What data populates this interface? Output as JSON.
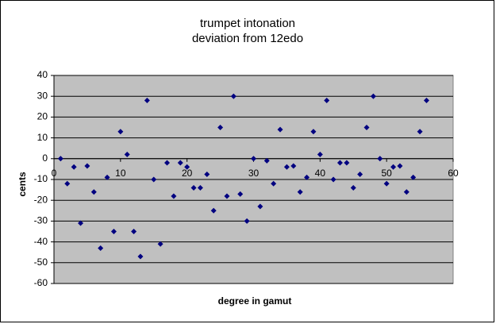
{
  "chart_data": {
    "type": "scatter",
    "title": "trumpet intonation",
    "subtitle": "deviation from 12edo",
    "x_label": "degree in gamut",
    "y_label": "cents",
    "color": "#000080",
    "grid": true,
    "xlim": [
      0,
      60
    ],
    "xticks": [
      0,
      10,
      20,
      30,
      40,
      50,
      60
    ],
    "ylim": [
      -60,
      40
    ],
    "yticks": [
      -60,
      -50,
      -40,
      -30,
      -20,
      -10,
      0,
      10,
      20,
      30,
      40
    ],
    "x": [
      1,
      2,
      3,
      4,
      5,
      6,
      7,
      8,
      9,
      10,
      11,
      12,
      13,
      14,
      15,
      16,
      17,
      18,
      19,
      20,
      21,
      22,
      23,
      24,
      25,
      26,
      27,
      28,
      29,
      30,
      31,
      32,
      33,
      34,
      35,
      36,
      37,
      38,
      39,
      40,
      41,
      42,
      43,
      44,
      45,
      46,
      47,
      48,
      49,
      50,
      51,
      52,
      53,
      54,
      55,
      56
    ],
    "values": [
      0,
      -12,
      -4,
      -31,
      -3.5,
      -16,
      -43,
      -9,
      -35,
      13,
      2,
      -35,
      -47,
      28,
      -10,
      -41,
      -2,
      -18,
      -2,
      -4,
      -14,
      -14,
      -7.5,
      -25,
      15,
      -18,
      30,
      -17,
      -30,
      0,
      -23,
      -1,
      -12,
      14,
      -4,
      -3.5,
      -16,
      -9,
      13,
      2,
      28,
      -10,
      -2,
      -2,
      -14,
      -7.5,
      15,
      30,
      0,
      -12,
      -4,
      -3.5,
      -16,
      -9,
      13,
      28
    ]
  }
}
